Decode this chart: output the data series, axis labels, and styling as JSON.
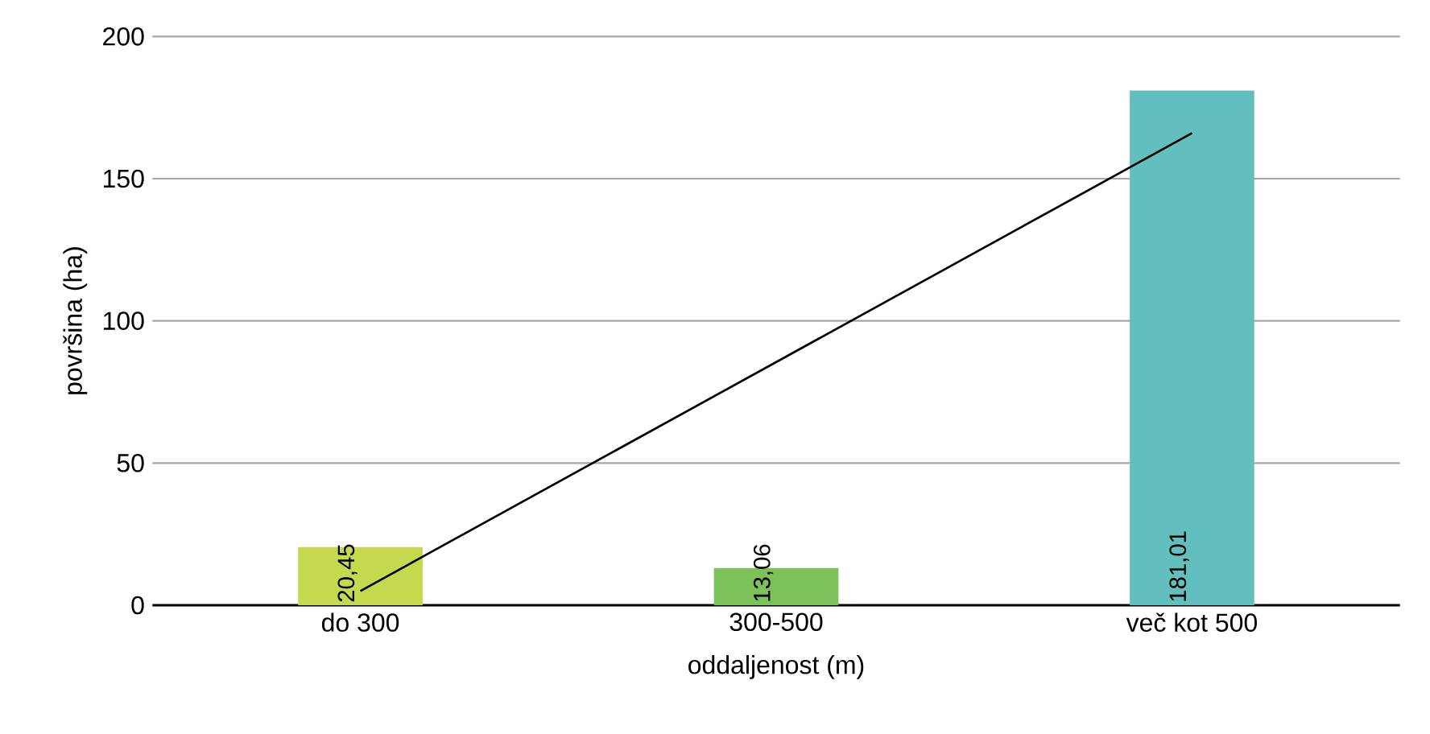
{
  "chart_data": {
    "type": "bar",
    "xlabel": "oddaljenost (m)",
    "ylabel": "površina (ha)",
    "categories": [
      "do 300",
      "300-500",
      "več kot 500"
    ],
    "series": [
      {
        "values": [
          20.45,
          13.06,
          181.01
        ],
        "colors": [
          "#c5d84e",
          "#7cc15a",
          "#62bfbe"
        ],
        "value_labels": [
          "20,45",
          "13,06",
          "181,01"
        ]
      },
      {
        "type": "line",
        "color": "#000000",
        "values": [
          5,
          85.5,
          166
        ],
        "marker": "none"
      }
    ],
    "ylim": [
      0,
      200
    ],
    "yticks": [
      0,
      50,
      100,
      150,
      200
    ],
    "grid": "y"
  }
}
